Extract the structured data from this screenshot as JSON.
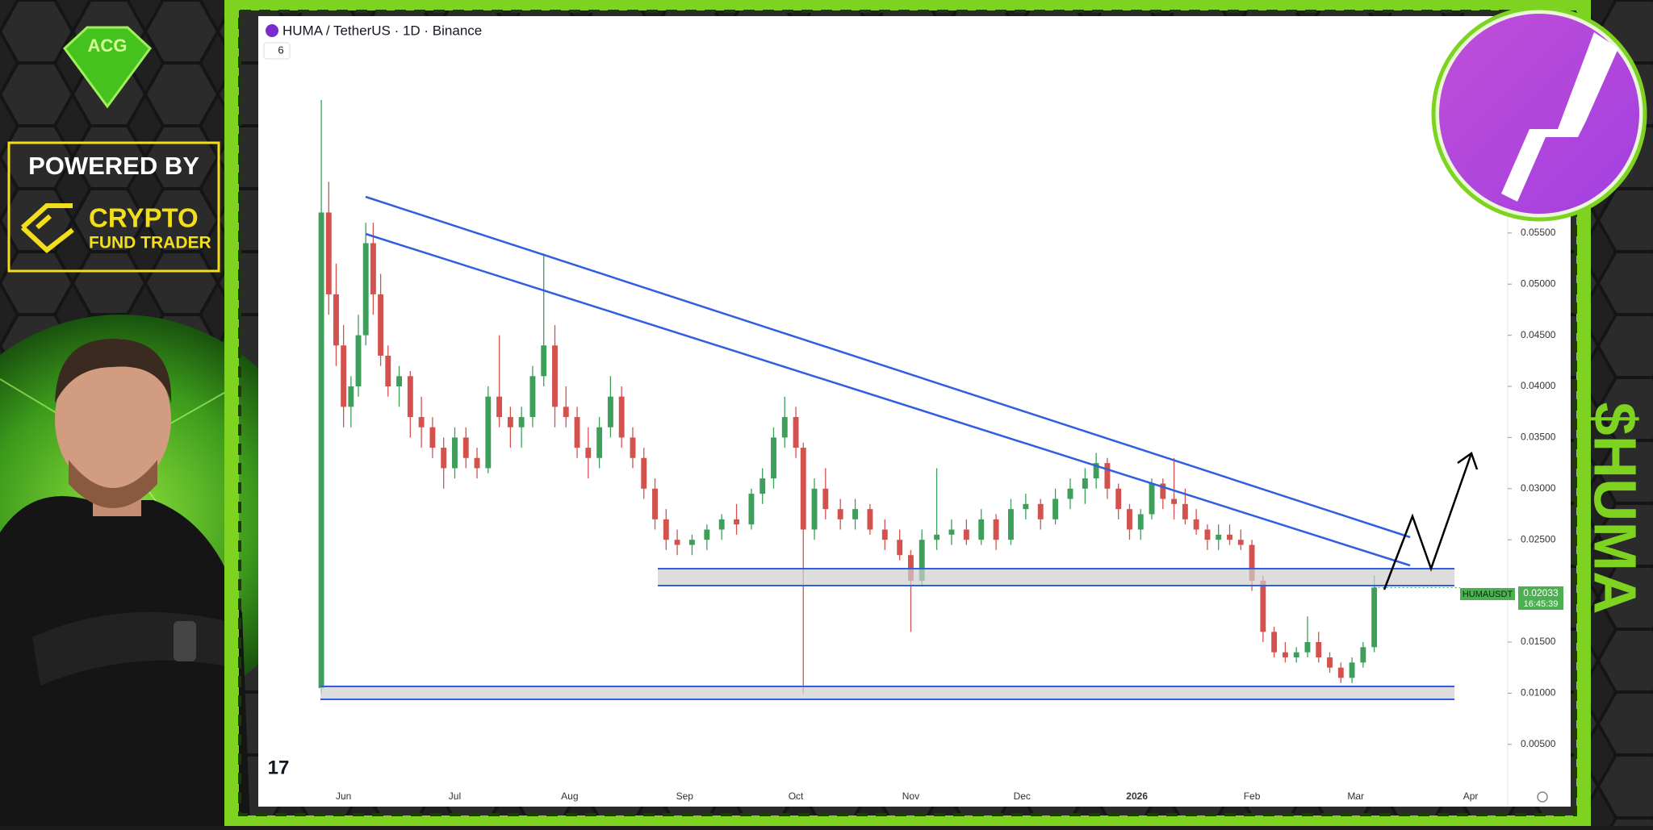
{
  "chart_data": {
    "type": "candlestick",
    "title": "HUMA / TetherUS · 1D · Binance",
    "badge": "6",
    "symbol": "HUMAUSDT",
    "last_price": {
      "value": 0.02033,
      "label": "0.02033"
    },
    "countdown": "16:45:39",
    "up_color": "#3d9f5a",
    "down_color": "#d4524e",
    "xlim": [
      -23,
      314
    ],
    "ylim": [
      -0.0003,
      0.0762
    ],
    "xticks": [
      {
        "value": 0,
        "label": "Jun"
      },
      {
        "value": 30,
        "label": "Jul"
      },
      {
        "value": 61,
        "label": "Aug"
      },
      {
        "value": 92,
        "label": "Sep"
      },
      {
        "value": 122,
        "label": "Oct"
      },
      {
        "value": 153,
        "label": "Nov"
      },
      {
        "value": 183,
        "label": "Dec"
      },
      {
        "value": 214,
        "label": "2026"
      },
      {
        "value": 245,
        "label": "Feb"
      },
      {
        "value": 273,
        "label": "Mar"
      },
      {
        "value": 304,
        "label": "Apr"
      }
    ],
    "yticks": [
      {
        "value": 0.005,
        "label": "0.00500"
      },
      {
        "value": 0.01,
        "label": "0.01000"
      },
      {
        "value": 0.015,
        "label": "0.01500"
      },
      {
        "value": 0.02,
        "label": "0.02000"
      },
      {
        "value": 0.025,
        "label": "0.02500"
      },
      {
        "value": 0.03,
        "label": "0.03000"
      },
      {
        "value": 0.035,
        "label": "0.03500"
      },
      {
        "value": 0.04,
        "label": "0.04000"
      },
      {
        "value": 0.045,
        "label": "0.04500"
      },
      {
        "value": 0.05,
        "label": "0.05000"
      },
      {
        "value": 0.055,
        "label": "0.05500"
      }
    ],
    "x": [
      -6,
      -4,
      -2,
      0,
      2,
      4,
      6,
      8,
      10,
      12,
      15,
      18,
      21,
      24,
      27,
      30,
      33,
      36,
      39,
      42,
      45,
      48,
      51,
      54,
      57,
      60,
      63,
      66,
      69,
      72,
      75,
      78,
      81,
      84,
      87,
      90,
      94,
      98,
      102,
      106,
      110,
      113,
      116,
      119,
      122,
      124,
      127,
      130,
      134,
      138,
      142,
      146,
      150,
      153,
      156,
      160,
      164,
      168,
      172,
      176,
      180,
      184,
      188,
      192,
      196,
      200,
      203,
      206,
      209,
      212,
      215,
      218,
      221,
      224,
      227,
      230,
      233,
      236,
      239,
      242,
      245,
      248,
      251,
      254,
      257,
      260,
      263,
      266,
      269,
      272,
      275,
      278
    ],
    "open": [
      0.0105,
      0.057,
      0.049,
      0.044,
      0.038,
      0.04,
      0.045,
      0.054,
      0.049,
      0.043,
      0.04,
      0.041,
      0.037,
      0.036,
      0.034,
      0.032,
      0.035,
      0.033,
      0.032,
      0.039,
      0.037,
      0.036,
      0.037,
      0.041,
      0.044,
      0.038,
      0.037,
      0.034,
      0.033,
      0.036,
      0.039,
      0.035,
      0.033,
      0.03,
      0.027,
      0.025,
      0.0245,
      0.025,
      0.026,
      0.027,
      0.0265,
      0.0295,
      0.031,
      0.035,
      0.037,
      0.034,
      0.026,
      0.03,
      0.028,
      0.027,
      0.028,
      0.026,
      0.025,
      0.0235,
      0.021,
      0.025,
      0.0255,
      0.026,
      0.025,
      0.027,
      0.025,
      0.028,
      0.0285,
      0.027,
      0.029,
      0.03,
      0.031,
      0.0325,
      0.03,
      0.028,
      0.026,
      0.0275,
      0.0305,
      0.029,
      0.0285,
      0.027,
      0.026,
      0.025,
      0.0255,
      0.025,
      0.0245,
      0.021,
      0.016,
      0.014,
      0.0135,
      0.014,
      0.015,
      0.0135,
      0.0125,
      0.0115,
      0.013,
      0.0145
    ],
    "high": [
      0.068,
      0.06,
      0.052,
      0.046,
      0.041,
      0.047,
      0.056,
      0.056,
      0.051,
      0.044,
      0.042,
      0.0415,
      0.039,
      0.037,
      0.035,
      0.036,
      0.036,
      0.034,
      0.04,
      0.045,
      0.038,
      0.038,
      0.042,
      0.053,
      0.046,
      0.04,
      0.038,
      0.036,
      0.037,
      0.041,
      0.04,
      0.036,
      0.034,
      0.031,
      0.028,
      0.026,
      0.0255,
      0.0265,
      0.0275,
      0.0285,
      0.03,
      0.032,
      0.036,
      0.039,
      0.038,
      0.0345,
      0.031,
      0.032,
      0.029,
      0.029,
      0.0285,
      0.027,
      0.026,
      0.024,
      0.026,
      0.032,
      0.027,
      0.027,
      0.028,
      0.0275,
      0.029,
      0.0295,
      0.029,
      0.03,
      0.031,
      0.032,
      0.0335,
      0.033,
      0.0305,
      0.0285,
      0.028,
      0.031,
      0.031,
      0.033,
      0.03,
      0.028,
      0.0265,
      0.0265,
      0.0265,
      0.026,
      0.025,
      0.0215,
      0.0165,
      0.015,
      0.0145,
      0.0175,
      0.016,
      0.014,
      0.013,
      0.0135,
      0.015,
      0.0215
    ],
    "low": [
      0.01,
      0.047,
      0.042,
      0.036,
      0.036,
      0.039,
      0.044,
      0.047,
      0.042,
      0.039,
      0.038,
      0.035,
      0.034,
      0.033,
      0.03,
      0.031,
      0.032,
      0.031,
      0.0315,
      0.036,
      0.034,
      0.034,
      0.036,
      0.04,
      0.036,
      0.036,
      0.033,
      0.031,
      0.032,
      0.035,
      0.034,
      0.032,
      0.029,
      0.026,
      0.024,
      0.0235,
      0.0235,
      0.024,
      0.025,
      0.0255,
      0.026,
      0.0285,
      0.03,
      0.034,
      0.033,
      0.01,
      0.025,
      0.027,
      0.026,
      0.026,
      0.0255,
      0.024,
      0.023,
      0.016,
      0.0205,
      0.024,
      0.0245,
      0.0245,
      0.0245,
      0.024,
      0.0245,
      0.027,
      0.026,
      0.0265,
      0.028,
      0.0285,
      0.03,
      0.029,
      0.027,
      0.025,
      0.025,
      0.027,
      0.028,
      0.027,
      0.0265,
      0.0255,
      0.024,
      0.024,
      0.0245,
      0.024,
      0.02,
      0.015,
      0.0135,
      0.013,
      0.013,
      0.0135,
      0.013,
      0.012,
      0.011,
      0.011,
      0.0125,
      0.014
    ],
    "close": [
      0.057,
      0.049,
      0.044,
      0.038,
      0.04,
      0.045,
      0.054,
      0.049,
      0.043,
      0.04,
      0.041,
      0.037,
      0.036,
      0.034,
      0.032,
      0.035,
      0.033,
      0.032,
      0.039,
      0.037,
      0.036,
      0.037,
      0.041,
      0.044,
      0.038,
      0.037,
      0.034,
      0.033,
      0.036,
      0.039,
      0.035,
      0.033,
      0.03,
      0.027,
      0.025,
      0.0245,
      0.025,
      0.026,
      0.027,
      0.0265,
      0.0295,
      0.031,
      0.035,
      0.037,
      0.034,
      0.026,
      0.03,
      0.028,
      0.027,
      0.028,
      0.026,
      0.025,
      0.0235,
      0.021,
      0.025,
      0.0255,
      0.026,
      0.025,
      0.027,
      0.025,
      0.028,
      0.0285,
      0.027,
      0.029,
      0.03,
      0.031,
      0.0325,
      0.03,
      0.028,
      0.026,
      0.0275,
      0.0305,
      0.029,
      0.0285,
      0.027,
      0.026,
      0.025,
      0.0255,
      0.025,
      0.0245,
      0.021,
      0.016,
      0.014,
      0.0135,
      0.014,
      0.015,
      0.0135,
      0.0125,
      0.0115,
      0.013,
      0.0145,
      0.02033
    ]
  },
  "branding": {
    "powered_by": "POWERED BY",
    "brand_line1": "CRYPTO",
    "brand_line2": "FUND TRADER",
    "ticker_tag": "$HUMA",
    "logo_mark": "ACG",
    "tv_logo": "17"
  }
}
